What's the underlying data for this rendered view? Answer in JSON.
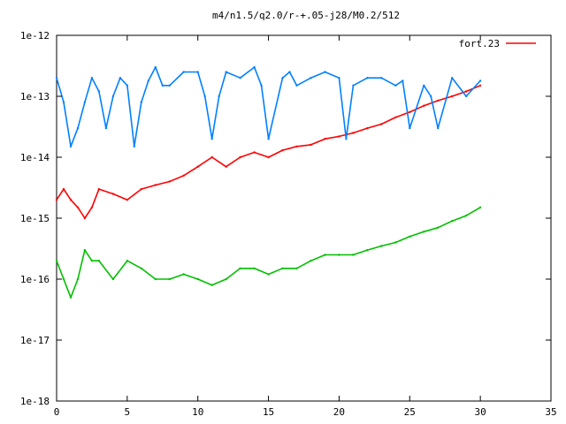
{
  "chart_data": {
    "type": "line",
    "title": "m4/n1.5/q2.0/r-+.05-j28/M0.2/512",
    "xlabel": "",
    "ylabel": "",
    "xlim": [
      0,
      35
    ],
    "ylim": [
      1e-18,
      1e-12
    ],
    "y_scale": "log",
    "grid": false,
    "legend_position": "top-right",
    "x_ticks": [
      0,
      5,
      10,
      15,
      20,
      25,
      30,
      35
    ],
    "x_tick_labels": [
      "0",
      "5",
      "10",
      "15",
      "20",
      "25",
      "30",
      "35"
    ],
    "y_ticks": [
      1e-18,
      1e-17,
      1e-16,
      1e-15,
      1e-14,
      1e-13,
      1e-12
    ],
    "y_tick_labels": [
      "1e-18",
      "1e-17",
      "1e-16",
      "1e-15",
      "1e-14",
      "1e-13",
      "1e-12"
    ],
    "series": [
      {
        "name": "fort.23",
        "color": "#ff0000",
        "x": [
          0,
          0.5,
          1,
          1.5,
          2,
          2.5,
          3,
          4,
          5,
          6,
          7,
          8,
          9,
          10,
          11,
          12,
          13,
          14,
          15,
          16,
          17,
          18,
          19,
          20,
          21,
          22,
          23,
          24,
          25,
          26,
          27,
          28,
          29,
          30
        ],
        "y": [
          2e-15,
          3e-15,
          2e-15,
          1.5e-15,
          1e-15,
          1.5e-15,
          3e-15,
          2.5e-15,
          2e-15,
          3e-15,
          3.5e-15,
          4e-15,
          5e-15,
          7e-15,
          1e-14,
          7e-15,
          1e-14,
          1.2e-14,
          1e-14,
          1.3e-14,
          1.5e-14,
          1.6e-14,
          2e-14,
          2.2e-14,
          2.5e-14,
          3e-14,
          3.5e-14,
          4.5e-14,
          5.5e-14,
          7e-14,
          8.5e-14,
          1e-13,
          1.2e-13,
          1.5e-13
        ]
      },
      {
        "name": "",
        "color": "#0080ff",
        "x": [
          0,
          0.5,
          1,
          1.5,
          2,
          2.5,
          3,
          3.5,
          4,
          4.5,
          5,
          5.5,
          6,
          6.5,
          7,
          7.5,
          8,
          9,
          10,
          10.5,
          11,
          11.5,
          12,
          13,
          14,
          14.5,
          15,
          16,
          16.5,
          17,
          18,
          19,
          20,
          20.5,
          21,
          22,
          23,
          24,
          24.5,
          25,
          26,
          26.5,
          27,
          28,
          29,
          30
        ],
        "y": [
          2e-13,
          8e-14,
          1.5e-14,
          3e-14,
          8e-14,
          2e-13,
          1.2e-13,
          3e-14,
          1e-13,
          2e-13,
          1.5e-13,
          1.5e-14,
          8e-14,
          1.8e-13,
          3e-13,
          1.5e-13,
          1.5e-13,
          2.5e-13,
          2.5e-13,
          1e-13,
          2e-14,
          1e-13,
          2.5e-13,
          2e-13,
          3e-13,
          1.5e-13,
          2e-14,
          2e-13,
          2.5e-13,
          1.5e-13,
          2e-13,
          2.5e-13,
          2e-13,
          2e-14,
          1.5e-13,
          2e-13,
          2e-13,
          1.5e-13,
          1.8e-13,
          3e-14,
          1.5e-13,
          1e-13,
          3e-14,
          2e-13,
          1e-13,
          1.8e-13
        ]
      },
      {
        "name": "",
        "color": "#00c000",
        "x": [
          0,
          0.5,
          1,
          1.5,
          2,
          2.5,
          3,
          4,
          5,
          6,
          7,
          8,
          9,
          10,
          11,
          12,
          13,
          14,
          15,
          16,
          17,
          18,
          19,
          20,
          21,
          22,
          23,
          24,
          25,
          26,
          27,
          28,
          29,
          30
        ],
        "y": [
          2e-16,
          1e-16,
          5e-17,
          1e-16,
          3e-16,
          2e-16,
          2e-16,
          1e-16,
          2e-16,
          1.5e-16,
          1e-16,
          1e-16,
          1.2e-16,
          1e-16,
          8e-17,
          1e-16,
          1.5e-16,
          1.5e-16,
          1.2e-16,
          1.5e-16,
          1.5e-16,
          2e-16,
          2.5e-16,
          2.5e-16,
          2.5e-16,
          3e-16,
          3.5e-16,
          4e-16,
          5e-16,
          6e-16,
          7e-16,
          9e-16,
          1.1e-15,
          1.5e-15
        ]
      }
    ]
  }
}
